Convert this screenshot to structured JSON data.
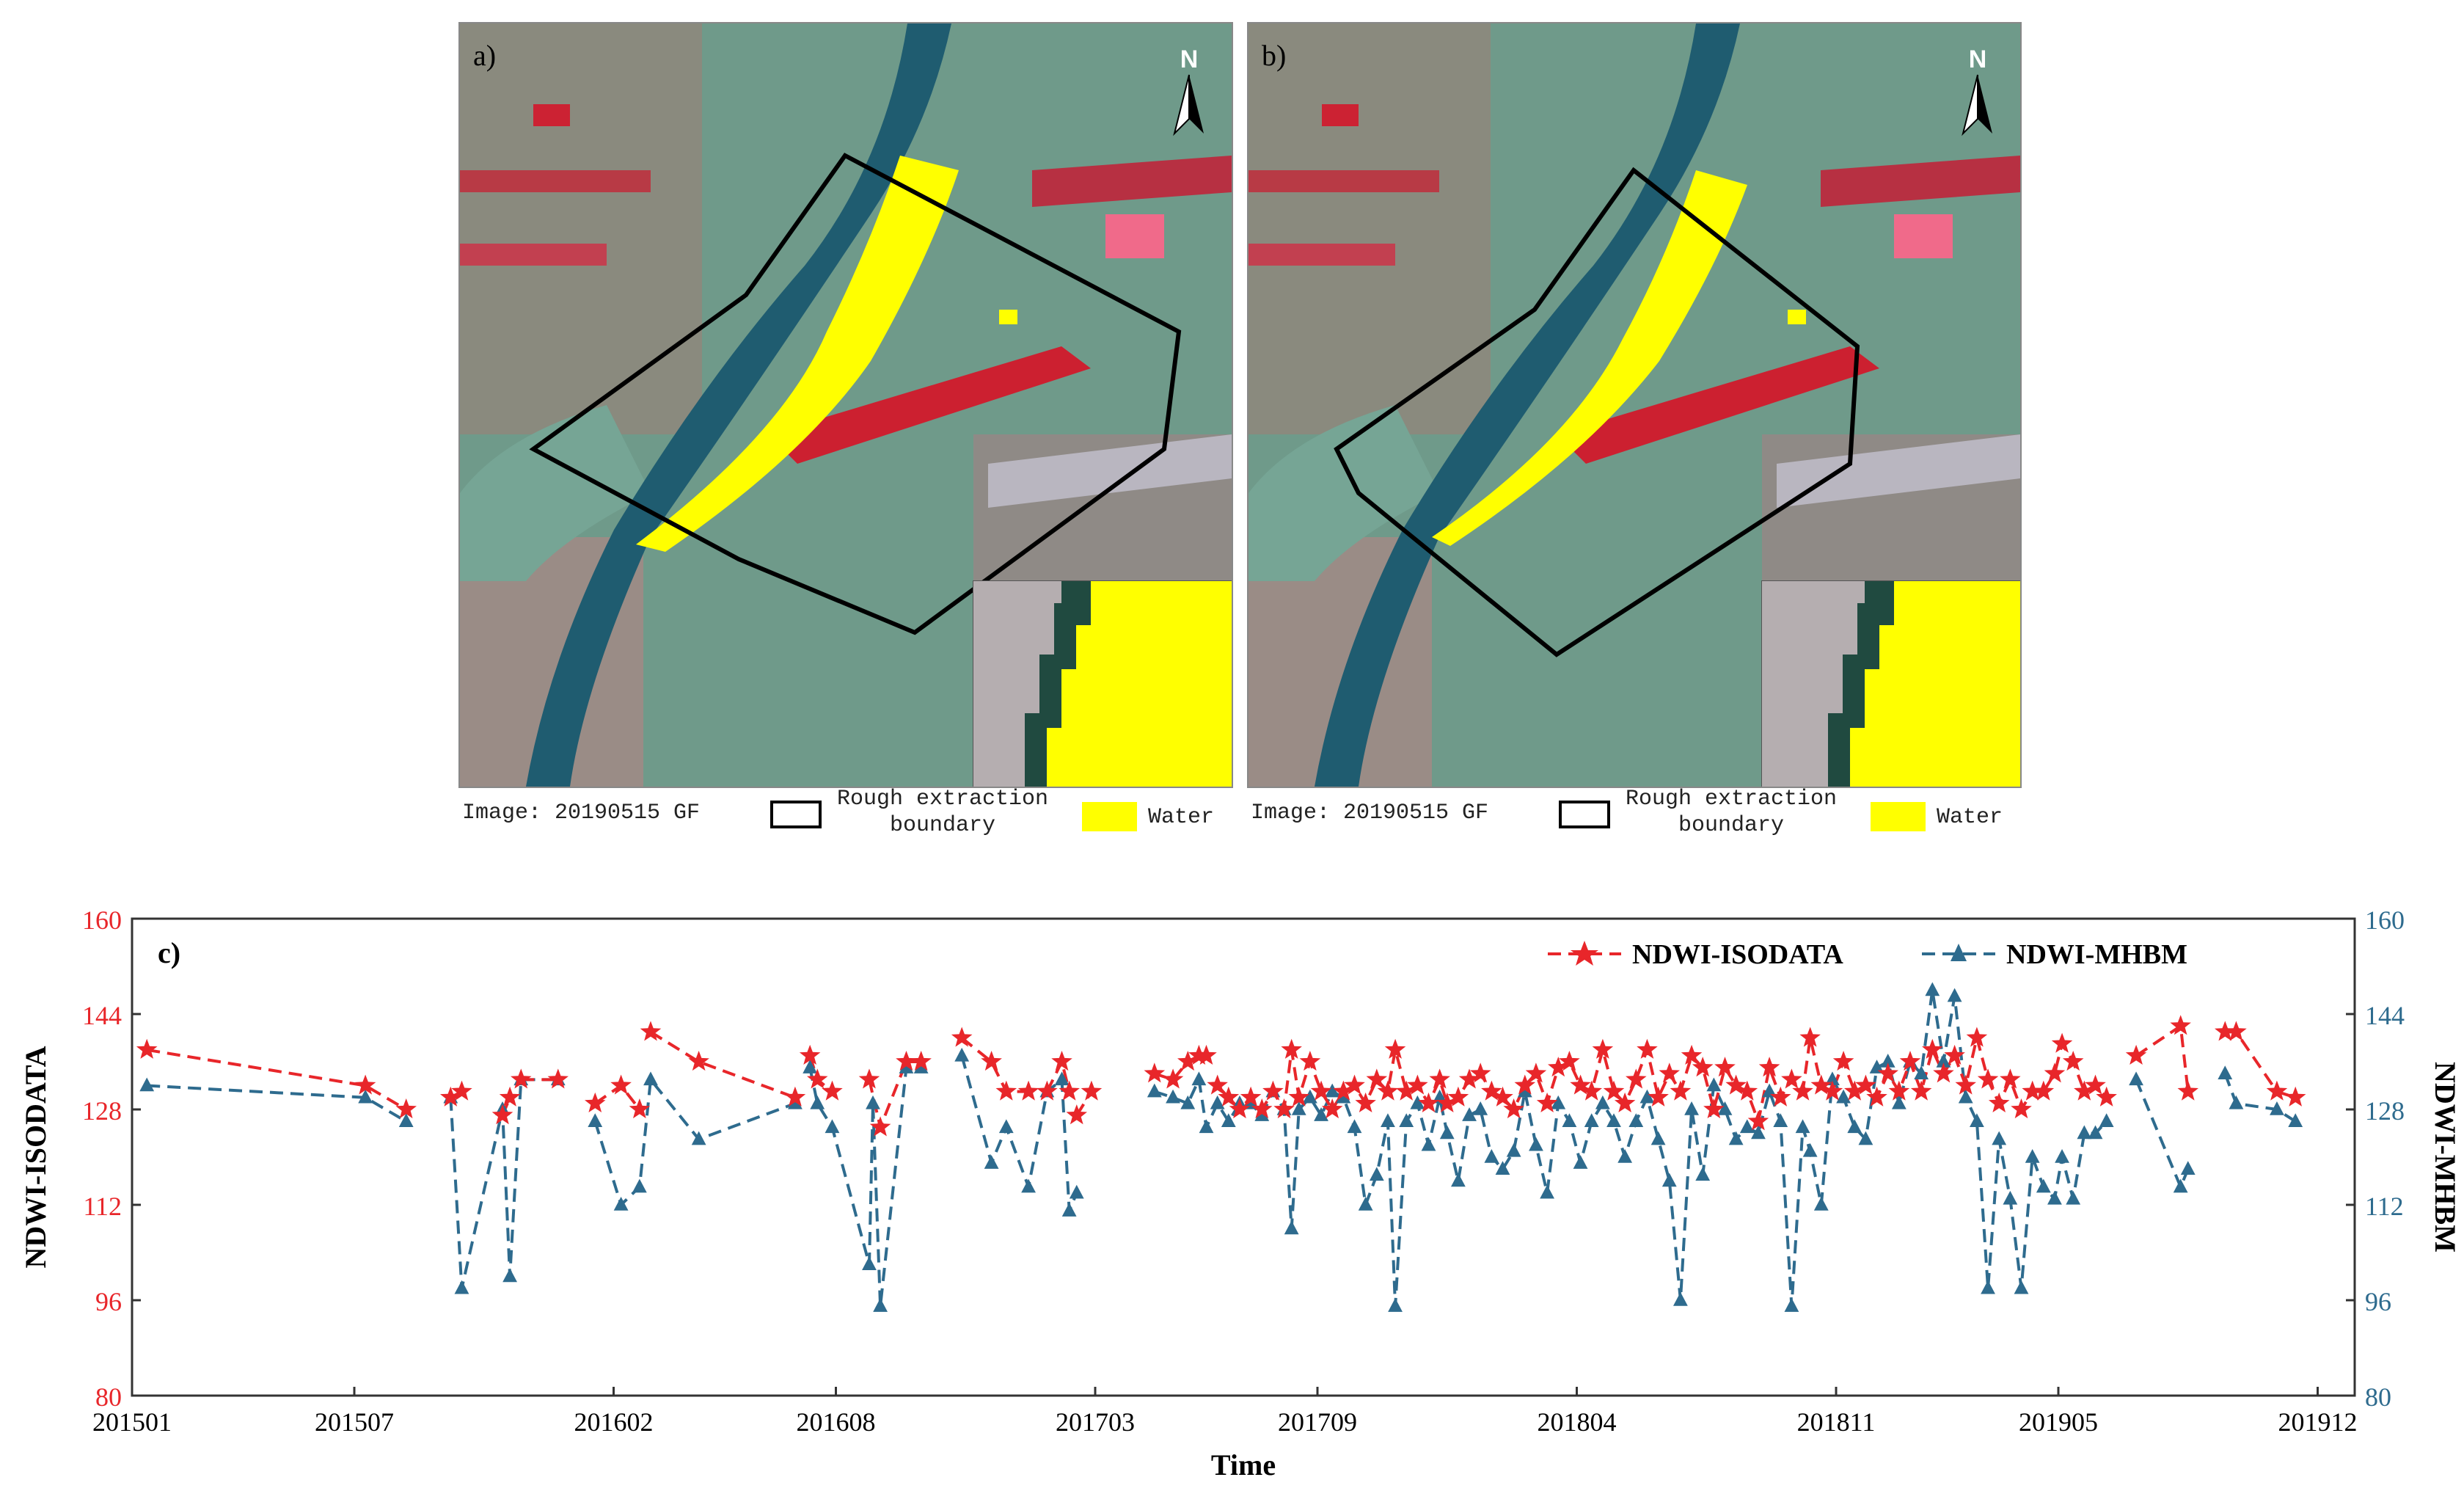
{
  "panels": [
    {
      "label": "a)",
      "north": "N",
      "image_label": "Image: 20190515  GF",
      "boundary_label": [
        "Rough extraction",
        "boundary"
      ],
      "water_label": "Water"
    },
    {
      "label": "b)",
      "north": "N",
      "image_label": "Image: 20190515  GF",
      "boundary_label": [
        "Rough extraction",
        "boundary"
      ],
      "water_label": "Water"
    }
  ],
  "colors": {
    "isodata": "#e8262a",
    "mhbm": "#2e6b8e",
    "water": "#ffff00",
    "boundary": "#000000"
  },
  "chart_data": {
    "type": "line",
    "panel_label": "c)",
    "xlabel": "Time",
    "ylabel_left": "NDWI-ISODATA",
    "ylabel_right": "NDWI-MHBM",
    "ylim": [
      80,
      160
    ],
    "yticks": [
      80,
      96,
      112,
      128,
      144,
      160
    ],
    "xlim": [
      0,
      60
    ],
    "xticks": [
      {
        "label": "201501",
        "x": 0
      },
      {
        "label": "201507",
        "x": 6
      },
      {
        "label": "201602",
        "x": 13
      },
      {
        "label": "201608",
        "x": 19
      },
      {
        "label": "201703",
        "x": 26
      },
      {
        "label": "201709",
        "x": 32
      },
      {
        "label": "201804",
        "x": 39
      },
      {
        "label": "201811",
        "x": 46
      },
      {
        "label": "201905",
        "x": 52
      },
      {
        "label": "201912",
        "x": 59
      }
    ],
    "legend": {
      "position": "top-right"
    },
    "series": [
      {
        "name": "NDWI-ISODATA",
        "axis": "left",
        "marker": "star",
        "segments": [
          [
            [
              0.4,
              138
            ],
            [
              6.3,
              132
            ],
            [
              7.4,
              128
            ]
          ],
          [
            [
              8.6,
              130
            ],
            [
              8.9,
              131
            ]
          ],
          [
            [
              10.0,
              127
            ],
            [
              10.2,
              130
            ]
          ],
          [
            [
              10.5,
              133
            ],
            [
              11.5,
              133
            ]
          ],
          [
            [
              12.5,
              129
            ],
            [
              13.2,
              132
            ],
            [
              13.7,
              128
            ]
          ],
          [
            [
              14.0,
              141
            ],
            [
              15.3,
              136
            ],
            [
              17.9,
              130
            ]
          ],
          [
            [
              18.3,
              137
            ],
            [
              18.5,
              133
            ],
            [
              18.9,
              131
            ]
          ],
          [
            [
              19.9,
              133
            ],
            [
              20.2,
              125
            ],
            [
              20.9,
              136
            ],
            [
              21.3,
              136
            ]
          ],
          [
            [
              22.4,
              140
            ],
            [
              23.2,
              136
            ],
            [
              23.6,
              131
            ],
            [
              24.2,
              131
            ]
          ],
          [
            [
              24.7,
              131
            ],
            [
              25.1,
              136
            ],
            [
              25.3,
              131
            ]
          ],
          [
            [
              25.5,
              127
            ],
            [
              25.9,
              131
            ]
          ],
          [
            [
              27.6,
              134
            ],
            [
              28.1,
              133
            ],
            [
              28.5,
              136
            ],
            [
              28.8,
              137
            ],
            [
              29.0,
              137
            ]
          ],
          [
            [
              29.3,
              132
            ],
            [
              29.6,
              130
            ],
            [
              29.9,
              128
            ],
            [
              30.2,
              130
            ],
            [
              30.5,
              128
            ],
            [
              30.8,
              131
            ],
            [
              31.1,
              128
            ],
            [
              31.3,
              138
            ],
            [
              31.5,
              130
            ],
            [
              31.8,
              136
            ],
            [
              32.1,
              131
            ],
            [
              32.4,
              128
            ],
            [
              32.7,
              131
            ],
            [
              33.0,
              132
            ],
            [
              33.3,
              129
            ],
            [
              33.6,
              133
            ],
            [
              33.9,
              131
            ],
            [
              34.1,
              138
            ],
            [
              34.4,
              131
            ],
            [
              34.7,
              132
            ],
            [
              35.0,
              129
            ],
            [
              35.3,
              133
            ],
            [
              35.5,
              129
            ],
            [
              35.8,
              130
            ],
            [
              36.1,
              133
            ],
            [
              36.4,
              134
            ],
            [
              36.7,
              131
            ],
            [
              37.0,
              130
            ],
            [
              37.3,
              128
            ],
            [
              37.6,
              132
            ],
            [
              37.9,
              134
            ],
            [
              38.2,
              129
            ],
            [
              38.5,
              135
            ],
            [
              38.8,
              136
            ],
            [
              39.1,
              132
            ],
            [
              39.4,
              131
            ],
            [
              39.7,
              138
            ],
            [
              40.0,
              131
            ],
            [
              40.3,
              129
            ],
            [
              40.6,
              133
            ],
            [
              40.9,
              138
            ],
            [
              41.2,
              130
            ],
            [
              41.5,
              134
            ],
            [
              41.8,
              131
            ],
            [
              42.1,
              137
            ],
            [
              42.4,
              135
            ],
            [
              42.7,
              128
            ],
            [
              43.0,
              135
            ],
            [
              43.3,
              132
            ],
            [
              43.6,
              131
            ],
            [
              43.9,
              126
            ],
            [
              44.2,
              135
            ],
            [
              44.5,
              130
            ],
            [
              44.8,
              133
            ],
            [
              45.1,
              131
            ],
            [
              45.3,
              140
            ],
            [
              45.6,
              132
            ],
            [
              45.9,
              131
            ],
            [
              46.2,
              136
            ],
            [
              46.5,
              131
            ],
            [
              46.8,
              132
            ],
            [
              47.1,
              130
            ],
            [
              47.4,
              134
            ],
            [
              47.7,
              131
            ],
            [
              48.0,
              136
            ],
            [
              48.3,
              131
            ],
            [
              48.6,
              138
            ],
            [
              48.9,
              134
            ],
            [
              49.2,
              137
            ],
            [
              49.5,
              132
            ],
            [
              49.8,
              140
            ],
            [
              50.1,
              133
            ],
            [
              50.4,
              129
            ],
            [
              50.7,
              133
            ],
            [
              51.0,
              128
            ],
            [
              51.3,
              131
            ],
            [
              51.6,
              131
            ],
            [
              51.9,
              134
            ],
            [
              52.1,
              139
            ],
            [
              52.4,
              136
            ],
            [
              52.7,
              131
            ],
            [
              53.0,
              132
            ],
            [
              53.3,
              130
            ]
          ],
          [
            [
              54.1,
              137
            ],
            [
              55.3,
              142
            ],
            [
              55.5,
              131
            ]
          ],
          [
            [
              56.5,
              141
            ],
            [
              56.8,
              141
            ],
            [
              57.9,
              131
            ],
            [
              58.4,
              130
            ]
          ]
        ]
      },
      {
        "name": "NDWI-MHBM",
        "axis": "right",
        "marker": "triangle",
        "segments": [
          [
            [
              0.4,
              132
            ],
            [
              6.3,
              130
            ],
            [
              7.4,
              126
            ]
          ],
          [
            [
              8.6,
              130
            ],
            [
              8.9,
              98
            ],
            [
              10.0,
              128
            ],
            [
              10.2,
              100
            ],
            [
              10.5,
              133
            ],
            [
              11.5,
              133
            ]
          ],
          [
            [
              12.5,
              126
            ],
            [
              13.2,
              112
            ],
            [
              13.7,
              115
            ],
            [
              14.0,
              133
            ],
            [
              15.3,
              123
            ],
            [
              17.9,
              129
            ]
          ],
          [
            [
              18.3,
              135
            ],
            [
              18.5,
              129
            ],
            [
              18.9,
              125
            ],
            [
              19.9,
              102
            ],
            [
              20.0,
              129
            ],
            [
              20.2,
              95
            ],
            [
              20.9,
              135
            ],
            [
              21.3,
              135
            ]
          ],
          [
            [
              22.4,
              137
            ],
            [
              23.2,
              119
            ],
            [
              23.6,
              125
            ],
            [
              24.2,
              115
            ],
            [
              24.7,
              131
            ],
            [
              25.1,
              133
            ],
            [
              25.3,
              111
            ],
            [
              25.5,
              114
            ]
          ],
          [
            [
              27.6,
              131
            ],
            [
              28.1,
              130
            ],
            [
              28.5,
              129
            ],
            [
              28.8,
              133
            ],
            [
              29.0,
              125
            ],
            [
              29.3,
              129
            ],
            [
              29.6,
              126
            ],
            [
              29.9,
              129
            ],
            [
              30.2,
              129
            ],
            [
              30.5,
              127
            ],
            [
              30.8,
              131
            ],
            [
              31.1,
              128
            ],
            [
              31.3,
              108
            ],
            [
              31.5,
              128
            ],
            [
              31.8,
              130
            ],
            [
              32.1,
              127
            ],
            [
              32.4,
              131
            ],
            [
              32.7,
              130
            ],
            [
              33.0,
              125
            ],
            [
              33.3,
              112
            ],
            [
              33.6,
              117
            ],
            [
              33.9,
              126
            ],
            [
              34.1,
              95
            ],
            [
              34.4,
              126
            ],
            [
              34.7,
              129
            ],
            [
              35.0,
              122
            ],
            [
              35.3,
              130
            ],
            [
              35.5,
              124
            ],
            [
              35.8,
              116
            ],
            [
              36.1,
              127
            ],
            [
              36.4,
              128
            ],
            [
              36.7,
              120
            ],
            [
              37.0,
              118
            ],
            [
              37.3,
              121
            ],
            [
              37.6,
              131
            ],
            [
              37.9,
              122
            ],
            [
              38.2,
              114
            ],
            [
              38.5,
              129
            ],
            [
              38.8,
              126
            ],
            [
              39.1,
              119
            ],
            [
              39.4,
              126
            ],
            [
              39.7,
              129
            ],
            [
              40.0,
              126
            ],
            [
              40.3,
              120
            ],
            [
              40.6,
              126
            ],
            [
              40.9,
              130
            ],
            [
              41.2,
              123
            ],
            [
              41.5,
              116
            ],
            [
              41.8,
              96
            ],
            [
              42.1,
              128
            ],
            [
              42.4,
              117
            ],
            [
              42.7,
              132
            ],
            [
              43.0,
              128
            ],
            [
              43.3,
              123
            ],
            [
              43.6,
              125
            ],
            [
              43.9,
              124
            ],
            [
              44.2,
              131
            ],
            [
              44.5,
              126
            ],
            [
              44.8,
              95
            ],
            [
              45.1,
              125
            ],
            [
              45.3,
              121
            ],
            [
              45.6,
              112
            ],
            [
              45.9,
              133
            ],
            [
              46.2,
              130
            ],
            [
              46.5,
              125
            ],
            [
              46.8,
              123
            ],
            [
              47.1,
              135
            ],
            [
              47.4,
              136
            ],
            [
              47.7,
              129
            ],
            [
              48.0,
              136
            ],
            [
              48.3,
              134
            ],
            [
              48.6,
              148
            ],
            [
              48.9,
              136
            ],
            [
              49.2,
              147
            ],
            [
              49.5,
              130
            ],
            [
              49.8,
              126
            ],
            [
              50.1,
              98
            ],
            [
              50.4,
              123
            ],
            [
              50.7,
              113
            ],
            [
              51.0,
              98
            ],
            [
              51.3,
              120
            ],
            [
              51.6,
              115
            ],
            [
              51.9,
              113
            ],
            [
              52.1,
              120
            ],
            [
              52.4,
              113
            ],
            [
              52.7,
              124
            ],
            [
              53.0,
              124
            ],
            [
              53.3,
              126
            ]
          ],
          [
            [
              54.1,
              133
            ],
            [
              55.3,
              115
            ],
            [
              55.5,
              118
            ]
          ],
          [
            [
              56.5,
              134
            ],
            [
              56.8,
              129
            ],
            [
              57.9,
              128
            ],
            [
              58.4,
              126
            ]
          ]
        ]
      }
    ]
  }
}
